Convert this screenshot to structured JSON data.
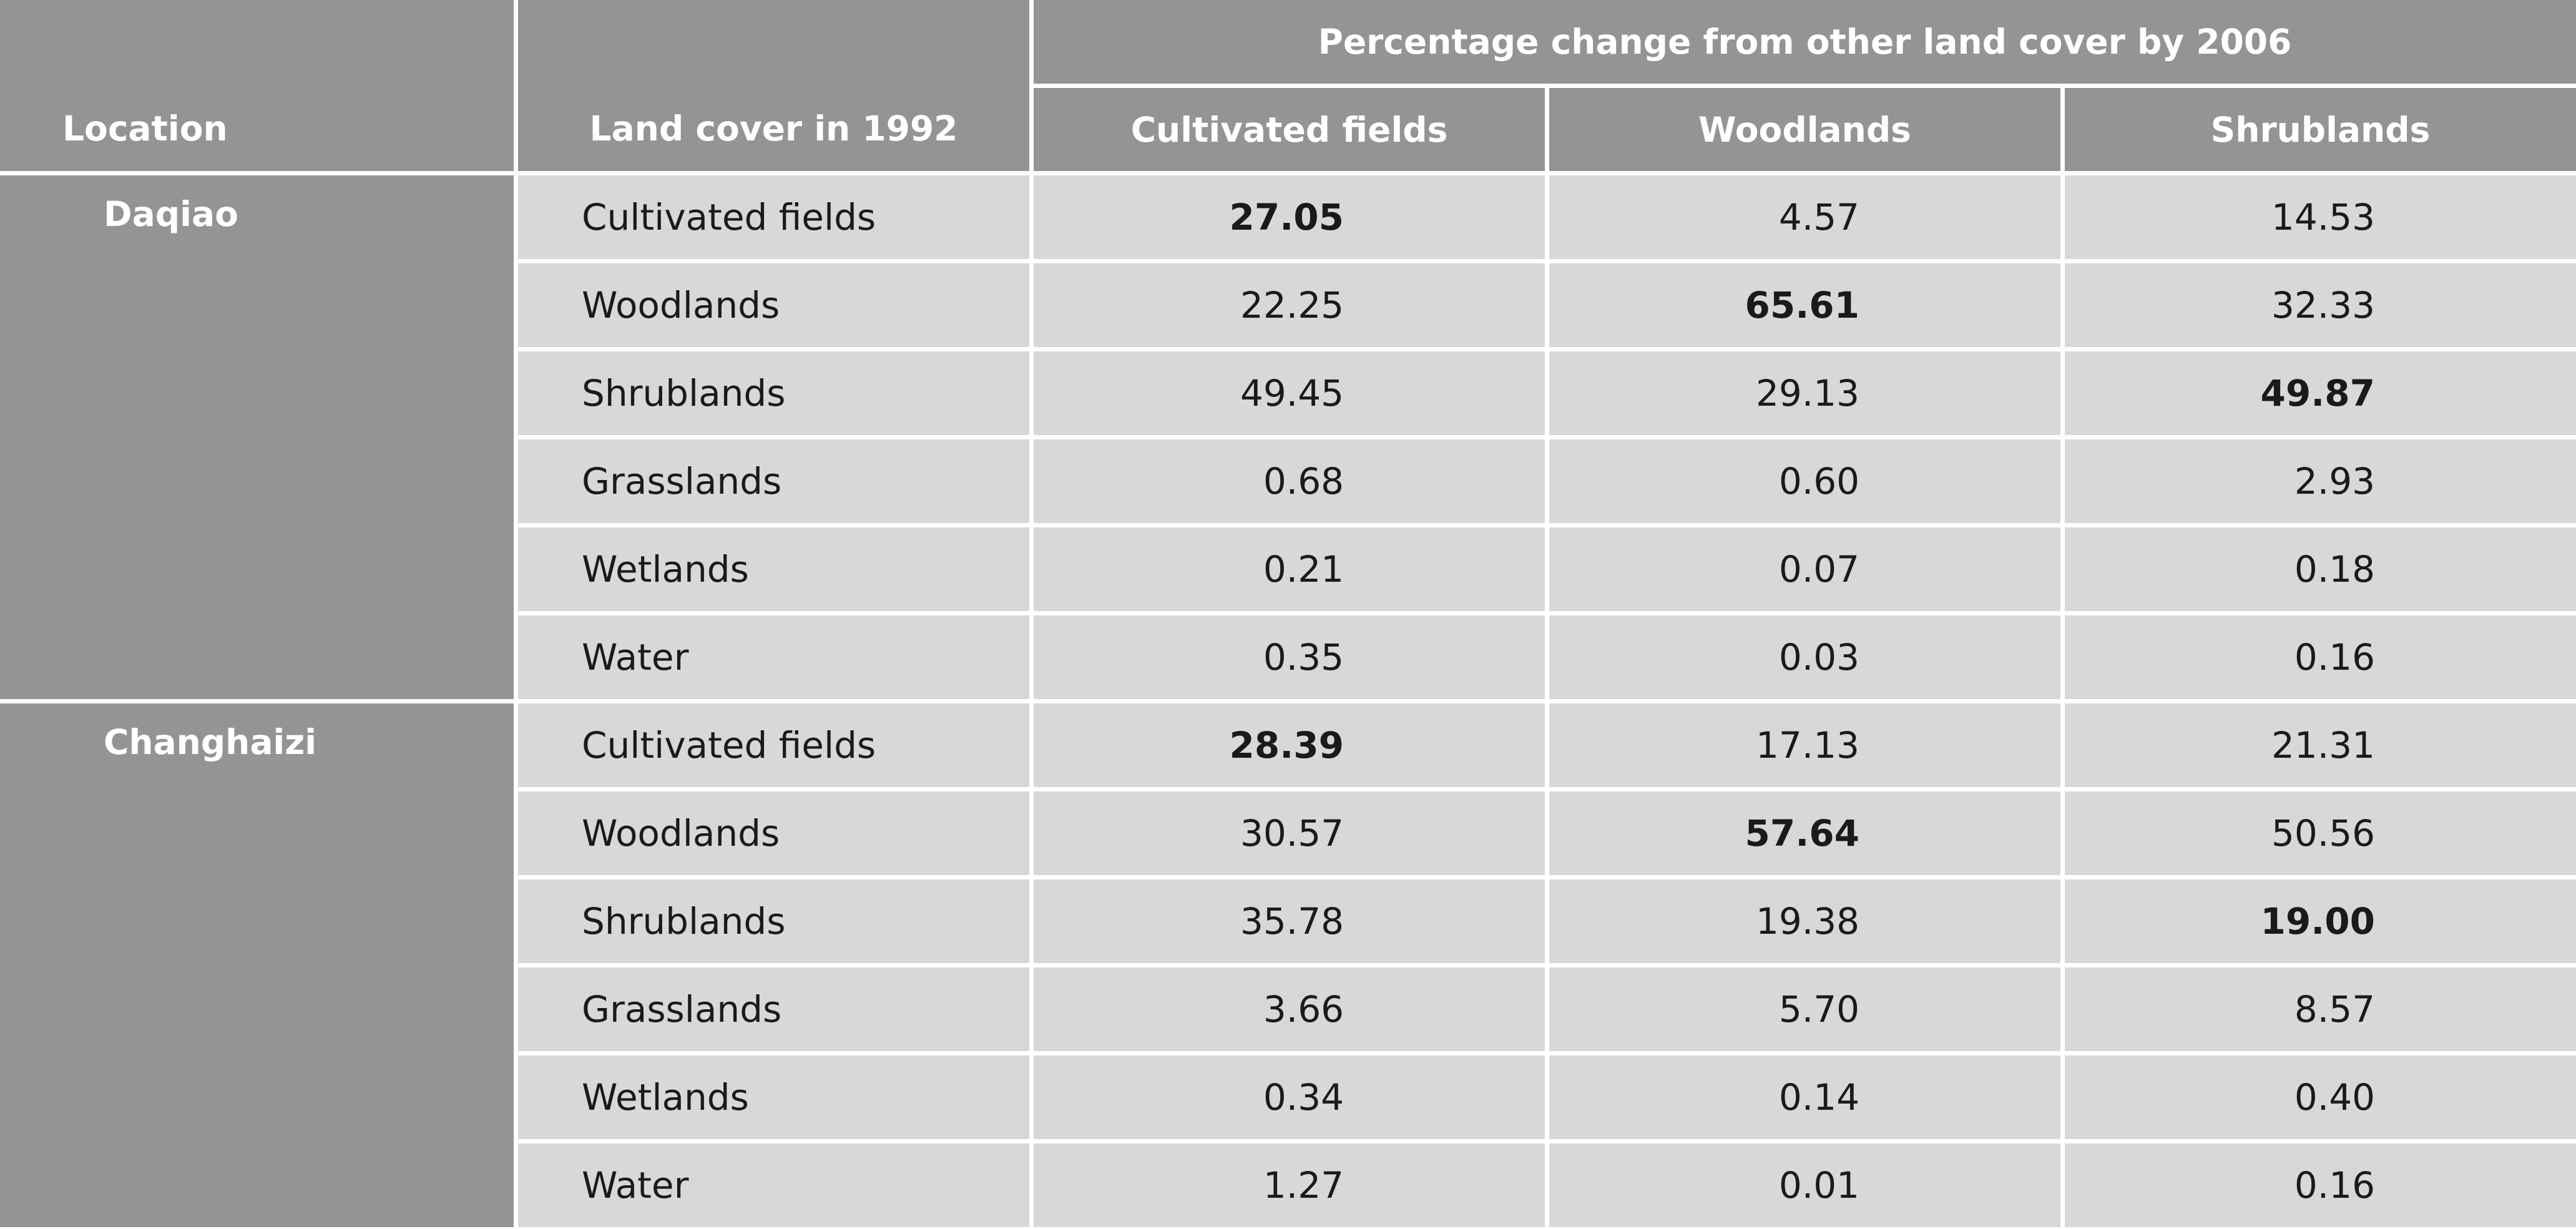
{
  "headers": {
    "location": "Location",
    "land_cover_1992": "Land cover in 1992",
    "group_title": "Percentage change from other land cover by 2006",
    "columns": [
      "Cultivated fields",
      "Woodlands",
      "Shrublands"
    ]
  },
  "groups": [
    {
      "location": "Daqiao",
      "rows": [
        {
          "land_cover": "Cultivated fields",
          "values": [
            "27.05",
            "4.57",
            "14.53"
          ],
          "bold_index": 0
        },
        {
          "land_cover": "Woodlands",
          "values": [
            "22.25",
            "65.61",
            "32.33"
          ],
          "bold_index": 1
        },
        {
          "land_cover": "Shrublands",
          "values": [
            "49.45",
            "29.13",
            "49.87"
          ],
          "bold_index": 2
        },
        {
          "land_cover": "Grasslands",
          "values": [
            "0.68",
            "0.60",
            "2.93"
          ],
          "bold_index": -1
        },
        {
          "land_cover": "Wetlands",
          "values": [
            "0.21",
            "0.07",
            "0.18"
          ],
          "bold_index": -1
        },
        {
          "land_cover": "Water",
          "values": [
            "0.35",
            "0.03",
            "0.16"
          ],
          "bold_index": -1
        }
      ]
    },
    {
      "location": "Changhaizi",
      "rows": [
        {
          "land_cover": "Cultivated fields",
          "values": [
            "28.39",
            "17.13",
            "21.31"
          ],
          "bold_index": 0
        },
        {
          "land_cover": "Woodlands",
          "values": [
            "30.57",
            "57.64",
            "50.56"
          ],
          "bold_index": 1
        },
        {
          "land_cover": "Shrublands",
          "values": [
            "35.78",
            "19.38",
            "19.00"
          ],
          "bold_index": 2
        },
        {
          "land_cover": "Grasslands",
          "values": [
            "3.66",
            "5.70",
            "8.57"
          ],
          "bold_index": -1
        },
        {
          "land_cover": "Wetlands",
          "values": [
            "0.34",
            "0.14",
            "0.40"
          ],
          "bold_index": -1
        },
        {
          "land_cover": "Water",
          "values": [
            "1.27",
            "0.01",
            "0.16"
          ],
          "bold_index": -1
        }
      ]
    }
  ]
}
